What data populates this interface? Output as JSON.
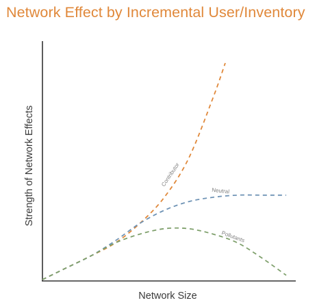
{
  "chart_data": {
    "type": "line",
    "title": "Network Effect by Incremental User/Inventory",
    "xlabel": "Network Size",
    "ylabel": "Strength of Network Effects",
    "grid": false,
    "legend": "none",
    "series": [
      {
        "name": "Contributor",
        "color": "#e0883a",
        "style": "dashed",
        "points": [
          [
            0,
            0
          ],
          [
            0.1,
            0.055
          ],
          [
            0.2,
            0.11
          ],
          [
            0.3,
            0.17
          ],
          [
            0.4,
            0.26
          ],
          [
            0.5,
            0.38
          ],
          [
            0.6,
            0.56
          ],
          [
            0.7,
            0.84
          ],
          [
            0.75,
            1.0
          ]
        ]
      },
      {
        "name": "Neutral",
        "color": "#6f93b5",
        "style": "dashed",
        "points": [
          [
            0,
            0
          ],
          [
            0.1,
            0.055
          ],
          [
            0.2,
            0.11
          ],
          [
            0.3,
            0.18
          ],
          [
            0.4,
            0.26
          ],
          [
            0.5,
            0.32
          ],
          [
            0.6,
            0.36
          ],
          [
            0.7,
            0.38
          ],
          [
            0.8,
            0.39
          ],
          [
            0.9,
            0.39
          ],
          [
            1.0,
            0.39
          ]
        ]
      },
      {
        "name": "Pollutants",
        "color": "#7fa06c",
        "style": "dashed",
        "points": [
          [
            0,
            0
          ],
          [
            0.1,
            0.055
          ],
          [
            0.2,
            0.11
          ],
          [
            0.3,
            0.17
          ],
          [
            0.4,
            0.21
          ],
          [
            0.5,
            0.235
          ],
          [
            0.6,
            0.235
          ],
          [
            0.7,
            0.21
          ],
          [
            0.8,
            0.17
          ],
          [
            0.9,
            0.1
          ],
          [
            1.0,
            0.02
          ]
        ]
      }
    ]
  },
  "colors": {
    "title": "#e0883a",
    "axis": "#333333"
  }
}
